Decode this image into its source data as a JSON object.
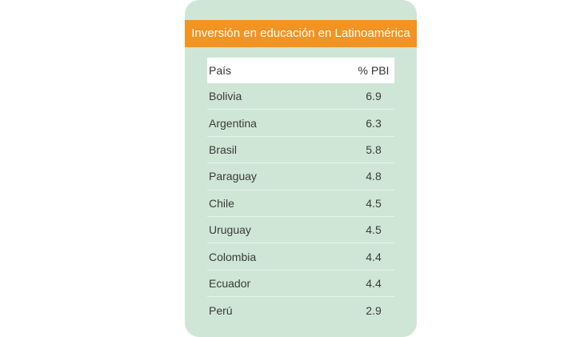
{
  "chart_data": {
    "type": "table",
    "title": "Inversión en educación en Latinoamérica",
    "columns": [
      "País",
      "% PBI"
    ],
    "rows": [
      {
        "country": "Bolivia",
        "value": "6.9"
      },
      {
        "country": "Argentina",
        "value": "6.3"
      },
      {
        "country": "Brasil",
        "value": "5.8"
      },
      {
        "country": "Paraguay",
        "value": "4.8"
      },
      {
        "country": "Chile",
        "value": "4.5"
      },
      {
        "country": "Uruguay",
        "value": "4.5"
      },
      {
        "country": "Colombia",
        "value": "4.4"
      },
      {
        "country": "Ecuador",
        "value": "4.4"
      },
      {
        "country": "Perú",
        "value": "2.9"
      }
    ]
  },
  "colors": {
    "title_bar": "#f39321",
    "card_background": "#cfe6d6",
    "header_background": "#ffffff"
  }
}
